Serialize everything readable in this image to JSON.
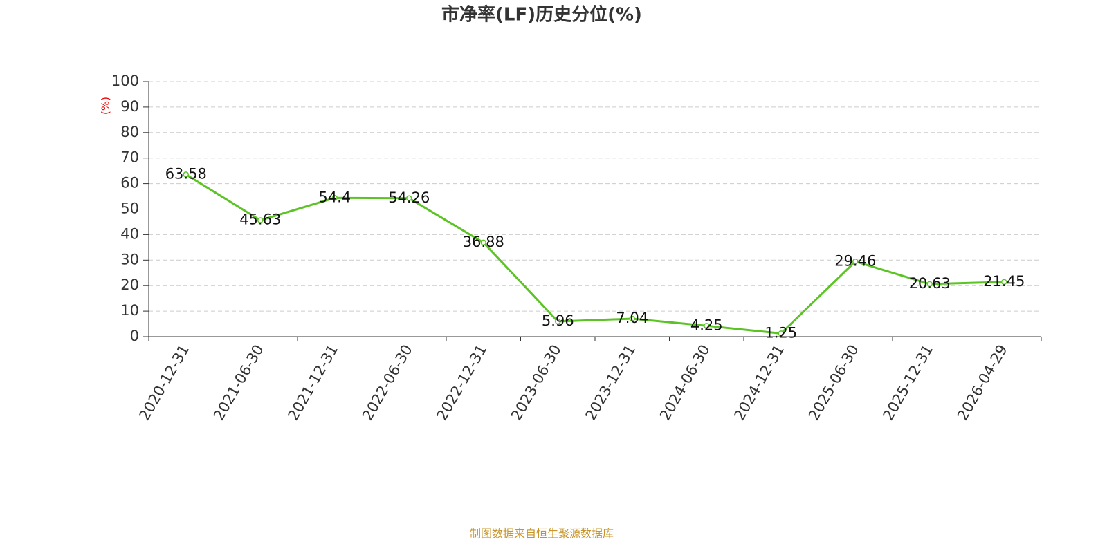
{
  "chart_data": {
    "type": "line",
    "title": "市净率(LF)历史分位(%)",
    "y_label": "(%)",
    "categories": [
      "2020-12-31",
      "2021-06-30",
      "2021-12-31",
      "2022-06-30",
      "2022-12-31",
      "2023-06-30",
      "2023-12-31",
      "2024-06-30",
      "2024-12-31",
      "2025-06-30",
      "2025-12-31",
      "2026-04-29"
    ],
    "values": [
      63.58,
      45.63,
      54.4,
      54.26,
      36.88,
      5.96,
      7.04,
      4.25,
      1.25,
      29.46,
      20.63,
      21.45
    ],
    "color": "#5bc424",
    "ylim": [
      0,
      100
    ],
    "yticks": [
      0,
      10,
      20,
      30,
      40,
      50,
      60,
      70,
      80,
      90,
      100
    ],
    "grid": true,
    "source": "制图数据来自恒生聚源数据库"
  }
}
